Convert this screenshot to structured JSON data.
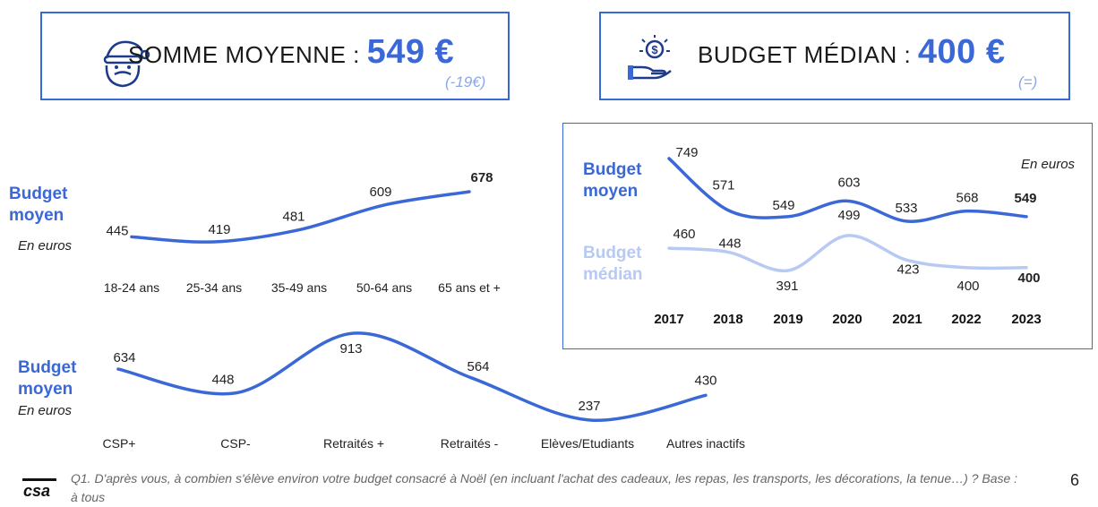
{
  "kpis": {
    "somme": {
      "label": "SOMME MOYENNE : ",
      "value": "549 €",
      "delta": "(-19€)",
      "icon": "santa-icon"
    },
    "budget": {
      "label": "BUDGET MÉDIAN : ",
      "value": "400 €",
      "delta": "(=)",
      "icon": "hand-money-icon"
    }
  },
  "chart_data": [
    {
      "type": "line",
      "ylabel": "Budget moyen",
      "unit": "En euros",
      "categories": [
        "18-24 ans",
        "25-34 ans",
        "35-49 ans",
        "50-64 ans",
        "65 ans et +"
      ],
      "series": [
        {
          "name": "Budget moyen",
          "values": [
            445,
            419,
            481,
            609,
            678
          ],
          "color": "#3a68d6"
        }
      ]
    },
    {
      "type": "line",
      "ylabel": "Budget moyen",
      "unit": "En euros",
      "categories": [
        "CSP+",
        "CSP-",
        "Retraités +",
        "Retraités -",
        "Elèves/Etudiants",
        "Autres inactifs"
      ],
      "series": [
        {
          "name": "Budget moyen",
          "values": [
            634,
            448,
            913,
            564,
            237,
            430
          ],
          "color": "#3a68d6"
        }
      ]
    },
    {
      "type": "line",
      "unit": "En euros",
      "categories": [
        "2017",
        "2018",
        "2019",
        "2020",
        "2021",
        "2022",
        "2023"
      ],
      "series": [
        {
          "name": "Budget moyen",
          "values": [
            749,
            571,
            549,
            603,
            533,
            568,
            549
          ],
          "color": "#3a68d6"
        },
        {
          "name": "Budget médian",
          "values": [
            460,
            448,
            391,
            499,
            423,
            400,
            400
          ],
          "color": "#b8c9f2"
        }
      ]
    }
  ],
  "footnote": "Q1. D'après vous, à combien s'élève environ votre budget consacré à Noël (en incluant l'achat des cadeaux, les repas, les transports, les décorations, la tenue…) ? Base : à tous",
  "page_number": "6",
  "logo": "csa",
  "colors": {
    "accent": "#3a68d6",
    "light": "#b8c9f2"
  }
}
